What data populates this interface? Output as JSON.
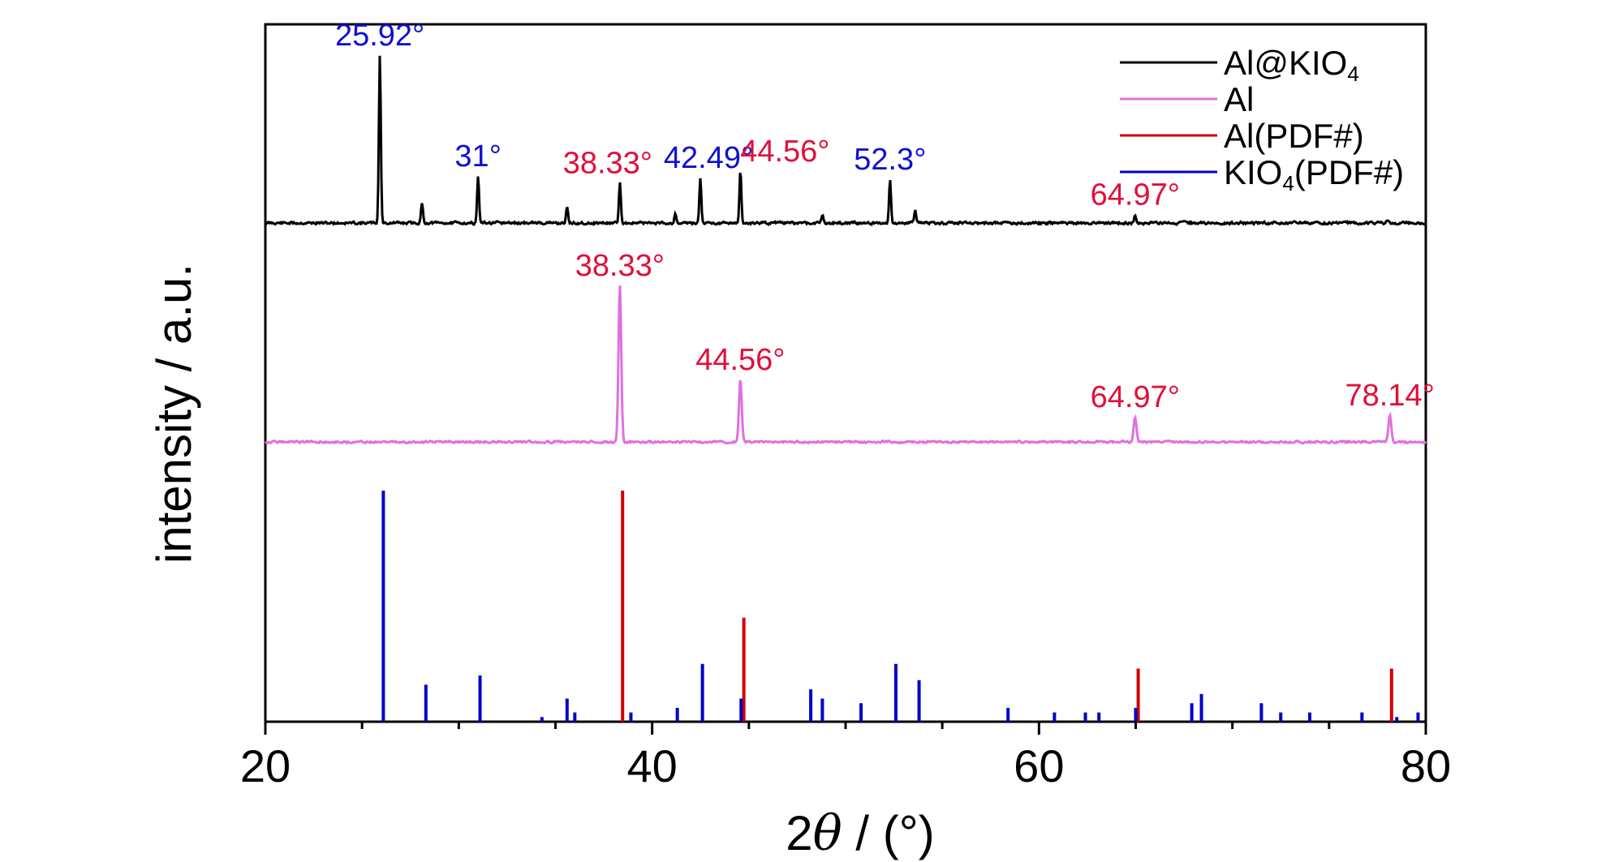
{
  "chart_data": {
    "type": "line",
    "xlabel_prefix": "2",
    "xlabel_symbol": "θ",
    "xlabel_suffix": " / (°)",
    "ylabel": "intensity / a.u.",
    "xlim": [
      20,
      80
    ],
    "xticks": [
      20,
      40,
      60,
      80
    ],
    "grid": false,
    "legend_position": "top-right",
    "colors": {
      "composite": "#000000",
      "al": "#e070e0",
      "al_pdf": "#d00000",
      "kio4_pdf": "#0000cc",
      "label_blue": "#1010d0",
      "label_red": "#e0103a"
    },
    "series": [
      {
        "name": "Al@KIO4",
        "legend_main": "Al@KIO",
        "legend_sub": "4",
        "color_key": "composite",
        "peaks": [
          {
            "x": 25.92,
            "h": 1.0
          },
          {
            "x": 28.1,
            "h": 0.12
          },
          {
            "x": 31.0,
            "h": 0.28
          },
          {
            "x": 35.6,
            "h": 0.1
          },
          {
            "x": 38.33,
            "h": 0.24
          },
          {
            "x": 41.2,
            "h": 0.06
          },
          {
            "x": 42.49,
            "h": 0.27
          },
          {
            "x": 44.56,
            "h": 0.31
          },
          {
            "x": 48.8,
            "h": 0.05
          },
          {
            "x": 52.3,
            "h": 0.26
          },
          {
            "x": 53.6,
            "h": 0.08
          },
          {
            "x": 64.97,
            "h": 0.05
          },
          {
            "x": 78.0,
            "h": 0.02
          }
        ]
      },
      {
        "name": "Al",
        "color_key": "al",
        "peaks": [
          {
            "x": 38.33,
            "h": 1.0
          },
          {
            "x": 44.56,
            "h": 0.4
          },
          {
            "x": 64.97,
            "h": 0.16
          },
          {
            "x": 78.14,
            "h": 0.17
          }
        ]
      },
      {
        "name": "Al(PDF#)",
        "color_key": "al_pdf",
        "sticks": [
          {
            "x": 38.47,
            "h": 1.0
          },
          {
            "x": 44.74,
            "h": 0.45
          },
          {
            "x": 65.13,
            "h": 0.23
          },
          {
            "x": 78.23,
            "h": 0.23
          }
        ]
      },
      {
        "name": "KIO4(PDF#)",
        "legend_main": "KIO",
        "legend_sub": "4",
        "legend_suffix": "(PDF#)",
        "color_key": "kio4_pdf",
        "sticks": [
          {
            "x": 26.1,
            "h": 1.0
          },
          {
            "x": 28.3,
            "h": 0.16
          },
          {
            "x": 31.1,
            "h": 0.2
          },
          {
            "x": 34.3,
            "h": 0.02
          },
          {
            "x": 35.6,
            "h": 0.1
          },
          {
            "x": 36.0,
            "h": 0.04
          },
          {
            "x": 38.9,
            "h": 0.04
          },
          {
            "x": 41.3,
            "h": 0.06
          },
          {
            "x": 42.6,
            "h": 0.25
          },
          {
            "x": 44.6,
            "h": 0.1
          },
          {
            "x": 48.2,
            "h": 0.14
          },
          {
            "x": 48.8,
            "h": 0.1
          },
          {
            "x": 50.8,
            "h": 0.08
          },
          {
            "x": 52.6,
            "h": 0.25
          },
          {
            "x": 53.8,
            "h": 0.18
          },
          {
            "x": 58.4,
            "h": 0.06
          },
          {
            "x": 60.8,
            "h": 0.04
          },
          {
            "x": 62.4,
            "h": 0.04
          },
          {
            "x": 63.1,
            "h": 0.04
          },
          {
            "x": 65.0,
            "h": 0.06
          },
          {
            "x": 67.9,
            "h": 0.08
          },
          {
            "x": 68.4,
            "h": 0.12
          },
          {
            "x": 71.5,
            "h": 0.08
          },
          {
            "x": 72.5,
            "h": 0.04
          },
          {
            "x": 74.0,
            "h": 0.04
          },
          {
            "x": 76.7,
            "h": 0.04
          },
          {
            "x": 78.5,
            "h": 0.02
          },
          {
            "x": 79.6,
            "h": 0.04
          }
        ]
      }
    ],
    "annotations": [
      {
        "text": "25.92°",
        "x": 25.92,
        "series": "Al@KIO4",
        "color_key": "label_blue"
      },
      {
        "text": "31°",
        "x": 31.0,
        "series": "Al@KIO4",
        "color_key": "label_blue"
      },
      {
        "text": "38.33°",
        "x": 38.33,
        "series": "Al@KIO4",
        "color_key": "label_red"
      },
      {
        "text": "42.49°",
        "x": 42.49,
        "series": "Al@KIO4",
        "color_key": "label_blue"
      },
      {
        "text": "44.56°",
        "x": 44.56,
        "series": "Al@KIO4",
        "color_key": "label_red"
      },
      {
        "text": "52.3°",
        "x": 52.3,
        "series": "Al@KIO4",
        "color_key": "label_blue"
      },
      {
        "text": "64.97°",
        "x": 64.97,
        "series": "Al@KIO4",
        "color_key": "label_red"
      },
      {
        "text": "38.33°",
        "x": 38.33,
        "series": "Al",
        "color_key": "label_red"
      },
      {
        "text": "44.56°",
        "x": 44.56,
        "series": "Al",
        "color_key": "label_red"
      },
      {
        "text": "64.97°",
        "x": 64.97,
        "series": "Al",
        "color_key": "label_red"
      },
      {
        "text": "78.14°",
        "x": 78.14,
        "series": "Al",
        "color_key": "label_red"
      }
    ]
  }
}
